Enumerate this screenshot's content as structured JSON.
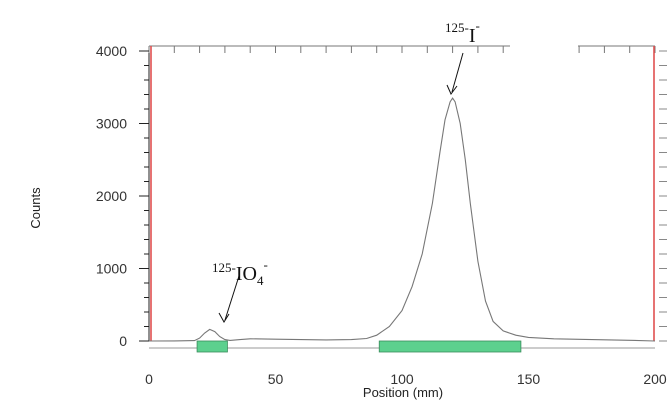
{
  "chart_data": {
    "type": "line",
    "xlabel": "Position (mm)",
    "ylabel": "Counts",
    "xlim": [
      0,
      200
    ],
    "ylim": [
      0,
      4000
    ],
    "x_ticks": [
      0,
      50,
      100,
      150,
      200
    ],
    "y_ticks": [
      0,
      1000,
      2000,
      3000,
      4000
    ],
    "grid": false,
    "series": [
      {
        "x": [
          0,
          10,
          18,
          20,
          22,
          24,
          26,
          28,
          30,
          32,
          36,
          40,
          50,
          60,
          70,
          80,
          86,
          90,
          95,
          100,
          104,
          108,
          112,
          115,
          117,
          119,
          120,
          121,
          123,
          125,
          127,
          130,
          133,
          136,
          140,
          145,
          150,
          160,
          175,
          190,
          200
        ],
        "y": [
          0,
          2,
          5,
          40,
          110,
          160,
          130,
          60,
          20,
          8,
          20,
          30,
          25,
          20,
          15,
          20,
          35,
          80,
          200,
          420,
          750,
          1200,
          1900,
          2600,
          3050,
          3300,
          3350,
          3300,
          3000,
          2500,
          1900,
          1100,
          550,
          270,
          140,
          80,
          50,
          30,
          20,
          10,
          0
        ]
      }
    ],
    "regions": [
      {
        "x_start": 19,
        "x_end": 31
      },
      {
        "x_start": 91,
        "x_end": 147
      }
    ],
    "colors": {
      "trace": "#777777",
      "region": "#5cd08e",
      "region_border": "#3a8c5c",
      "boundary": "#e05050",
      "axis": "#222222"
    },
    "annotations": [
      {
        "text_sup": "125-",
        "text_main": "IO",
        "text_sub": "4",
        "text_sup2": "-",
        "x": 28,
        "y": 170
      },
      {
        "text_sup": "125-",
        "text_main": "I",
        "text_sup2": "-",
        "x": 120,
        "y": 3350
      }
    ]
  }
}
